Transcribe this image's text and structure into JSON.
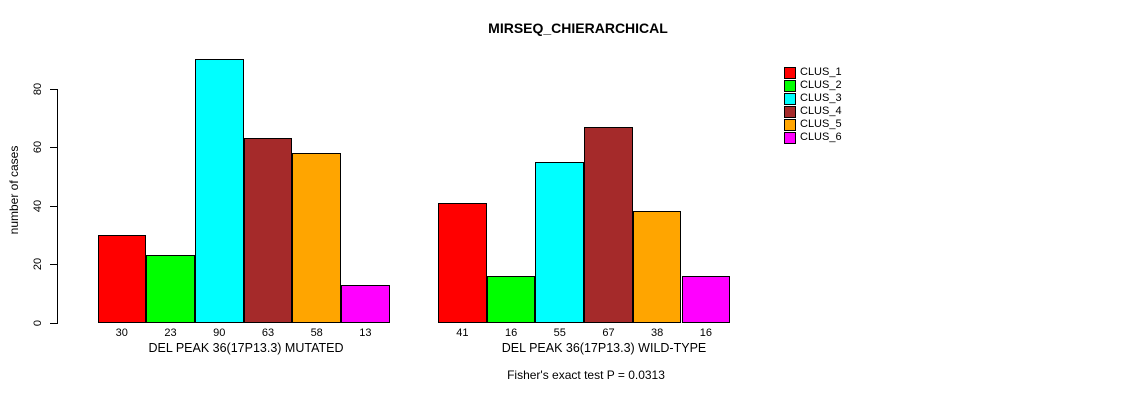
{
  "title": "MIRSEQ_CHIERARCHICAL",
  "footer": "Fisher's exact test P = 0.0313",
  "chart_data": {
    "type": "bar",
    "title": "MIRSEQ_CHIERARCHICAL",
    "xlabel": "",
    "ylabel": "number of cases",
    "ylim": [
      0,
      90
    ],
    "yticks": [
      0,
      20,
      40,
      60,
      80
    ],
    "grid": false,
    "legend_position": "top-right",
    "categories": [
      "CLUS_1",
      "CLUS_2",
      "CLUS_3",
      "CLUS_4",
      "CLUS_5",
      "CLUS_6"
    ],
    "category_colors": [
      "#FF0000",
      "#00FF00",
      "#00FFFF",
      "#A52A2A",
      "#FFA500",
      "#FF00FF"
    ],
    "groups": [
      {
        "label": "DEL PEAK 36(17P13.3) MUTATED",
        "values": [
          30,
          23,
          90,
          63,
          58,
          13
        ]
      },
      {
        "label": "DEL PEAK 36(17P13.3) WILD-TYPE",
        "values": [
          41,
          16,
          55,
          67,
          38,
          16
        ]
      }
    ],
    "annotation": "Fisher's exact test P = 0.0313"
  },
  "legend": {
    "items": [
      {
        "label": "CLUS_1",
        "color": "#FF0000"
      },
      {
        "label": "CLUS_2",
        "color": "#00FF00"
      },
      {
        "label": "CLUS_3",
        "color": "#00FFFF"
      },
      {
        "label": "CLUS_4",
        "color": "#A52A2A"
      },
      {
        "label": "CLUS_5",
        "color": "#FFA500"
      },
      {
        "label": "CLUS_6",
        "color": "#FF00FF"
      }
    ]
  },
  "colors": {
    "axis": "#000000",
    "text": "#000000",
    "background": "#FFFFFF"
  }
}
